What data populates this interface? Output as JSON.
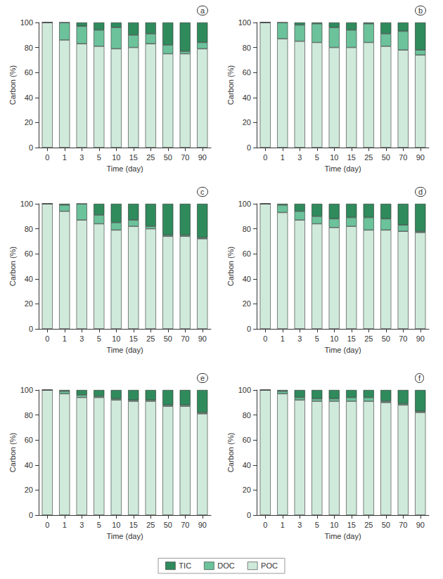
{
  "chart_data": [
    {
      "type": "bar",
      "label": "a",
      "stacked": true,
      "grid": false,
      "legend": "bottom",
      "xlabel": "Time (day)",
      "ylabel": "Carbon (%)",
      "categories": [
        "0",
        "1",
        "3",
        "5",
        "10",
        "15",
        "25",
        "50",
        "70",
        "90"
      ],
      "ylim": [
        0,
        100
      ],
      "yticks": [
        0,
        20,
        40,
        60,
        80,
        100
      ],
      "series": [
        {
          "name": "POC",
          "color": "#cfeadb",
          "values": [
            100,
            86,
            83,
            81,
            79,
            80,
            83,
            75,
            75,
            79
          ]
        },
        {
          "name": "DOC",
          "color": "#6cc29b",
          "values": [
            0,
            14,
            14,
            13,
            17,
            10,
            8,
            7,
            2,
            5
          ]
        },
        {
          "name": "TIC",
          "color": "#2f8a5c",
          "values": [
            0,
            0,
            3,
            6,
            4,
            10,
            9,
            18,
            23,
            16
          ]
        }
      ]
    },
    {
      "type": "bar",
      "label": "b",
      "stacked": true,
      "grid": false,
      "xlabel": "Time (day)",
      "ylabel": "Carbon (%)",
      "categories": [
        "0",
        "1",
        "3",
        "5",
        "10",
        "15",
        "25",
        "50",
        "70",
        "90"
      ],
      "ylim": [
        0,
        100
      ],
      "yticks": [
        0,
        20,
        40,
        60,
        80,
        100
      ],
      "series": [
        {
          "name": "POC",
          "color": "#cfeadb",
          "values": [
            100,
            87,
            85,
            84,
            80,
            80,
            84,
            81,
            78,
            74
          ]
        },
        {
          "name": "DOC",
          "color": "#6cc29b",
          "values": [
            0,
            13,
            13,
            15,
            16,
            14,
            15,
            10,
            15,
            4
          ]
        },
        {
          "name": "TIC",
          "color": "#2f8a5c",
          "values": [
            0,
            0,
            2,
            1,
            4,
            6,
            1,
            9,
            7,
            22
          ]
        }
      ]
    },
    {
      "type": "bar",
      "label": "c",
      "stacked": true,
      "grid": false,
      "xlabel": "Time (day)",
      "ylabel": "Carbon (%)",
      "categories": [
        "0",
        "1",
        "3",
        "5",
        "10",
        "15",
        "25",
        "50",
        "70",
        "90"
      ],
      "ylim": [
        0,
        100
      ],
      "yticks": [
        0,
        20,
        40,
        60,
        80,
        100
      ],
      "series": [
        {
          "name": "POC",
          "color": "#cfeadb",
          "values": [
            100,
            94,
            87,
            84,
            79,
            82,
            80,
            74,
            74,
            72
          ]
        },
        {
          "name": "DOC",
          "color": "#6cc29b",
          "values": [
            0,
            5,
            13,
            7,
            6,
            5,
            2,
            1,
            1,
            1
          ]
        },
        {
          "name": "TIC",
          "color": "#2f8a5c",
          "values": [
            0,
            1,
            0,
            9,
            15,
            13,
            18,
            25,
            25,
            27
          ]
        }
      ]
    },
    {
      "type": "bar",
      "label": "d",
      "stacked": true,
      "grid": false,
      "xlabel": "Time (day)",
      "ylabel": "Carbon (%)",
      "categories": [
        "0",
        "1",
        "3",
        "5",
        "10",
        "15",
        "25",
        "50",
        "70",
        "90"
      ],
      "ylim": [
        0,
        100
      ],
      "yticks": [
        0,
        20,
        40,
        60,
        80,
        100
      ],
      "series": [
        {
          "name": "POC",
          "color": "#cfeadb",
          "values": [
            100,
            93,
            87,
            84,
            81,
            82,
            79,
            79,
            78,
            77
          ]
        },
        {
          "name": "DOC",
          "color": "#6cc29b",
          "values": [
            0,
            6,
            7,
            6,
            7,
            7,
            10,
            9,
            5,
            1
          ]
        },
        {
          "name": "TIC",
          "color": "#2f8a5c",
          "values": [
            0,
            1,
            6,
            10,
            12,
            11,
            11,
            12,
            17,
            22
          ]
        }
      ]
    },
    {
      "type": "bar",
      "label": "e",
      "stacked": true,
      "grid": false,
      "xlabel": "Time (day)",
      "ylabel": "Carbon (%)",
      "categories": [
        "0",
        "1",
        "3",
        "5",
        "10",
        "15",
        "25",
        "50",
        "70",
        "90"
      ],
      "ylim": [
        0,
        100
      ],
      "yticks": [
        0,
        20,
        40,
        60,
        80,
        100
      ],
      "series": [
        {
          "name": "POC",
          "color": "#cfeadb",
          "values": [
            100,
            97,
            94,
            94,
            92,
            91,
            91,
            87,
            87,
            81
          ]
        },
        {
          "name": "DOC",
          "color": "#6cc29b",
          "values": [
            0,
            2,
            2,
            1,
            1,
            1,
            1,
            1,
            1,
            1
          ]
        },
        {
          "name": "TIC",
          "color": "#2f8a5c",
          "values": [
            0,
            1,
            4,
            5,
            7,
            8,
            8,
            12,
            12,
            18
          ]
        }
      ]
    },
    {
      "type": "bar",
      "label": "f",
      "stacked": true,
      "grid": false,
      "xlabel": "Time (day)",
      "ylabel": "Carbon (%)",
      "categories": [
        "0",
        "1",
        "3",
        "5",
        "10",
        "15",
        "25",
        "50",
        "70",
        "90"
      ],
      "ylim": [
        0,
        100
      ],
      "yticks": [
        0,
        20,
        40,
        60,
        80,
        100
      ],
      "series": [
        {
          "name": "POC",
          "color": "#cfeadb",
          "values": [
            100,
            97,
            92,
            91,
            91,
            91,
            91,
            90,
            88,
            82
          ]
        },
        {
          "name": "DOC",
          "color": "#6cc29b",
          "values": [
            0,
            2,
            2,
            2,
            2,
            3,
            3,
            1,
            1,
            1
          ]
        },
        {
          "name": "TIC",
          "color": "#2f8a5c",
          "values": [
            0,
            1,
            6,
            7,
            7,
            6,
            6,
            9,
            11,
            17
          ]
        }
      ]
    }
  ]
}
